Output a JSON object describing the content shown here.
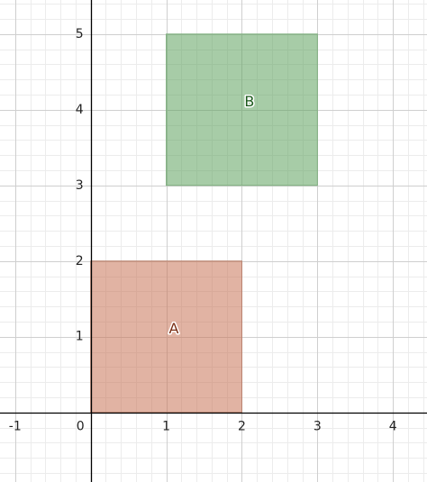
{
  "graph": {
    "x_range": [
      -1.2,
      4.45
    ],
    "y_range": [
      -0.92,
      5.45
    ],
    "x_ticks": [
      {
        "value": -1,
        "label": "-1"
      },
      {
        "value": 0,
        "label": "0"
      },
      {
        "value": 1,
        "label": "1"
      },
      {
        "value": 2,
        "label": "2"
      },
      {
        "value": 3,
        "label": "3"
      },
      {
        "value": 4,
        "label": "4"
      }
    ],
    "y_ticks": [
      {
        "value": 1,
        "label": "1"
      },
      {
        "value": 2,
        "label": "2"
      },
      {
        "value": 3,
        "label": "3"
      },
      {
        "value": 4,
        "label": "4"
      },
      {
        "value": 5,
        "label": "5"
      }
    ],
    "minor_step": 0.2,
    "colors": {
      "minor_grid": "#ececec",
      "major_grid": "#cfcfcf",
      "axis": "#000000"
    },
    "shapes": [
      {
        "id": "shape-a",
        "label": "A",
        "x0": 0,
        "y0": 0,
        "x1": 2,
        "y1": 2,
        "label_x": 1.1,
        "label_y": 1.1,
        "fill": "#c87457",
        "fill_opacity": 0.55,
        "stroke": "#b9826e",
        "label_color": "#7a2e14"
      },
      {
        "id": "shape-b",
        "label": "B",
        "x0": 1,
        "y0": 3,
        "x1": 3,
        "y1": 5,
        "label_x": 2.1,
        "label_y": 4.1,
        "fill": "#5ea35e",
        "fill_opacity": 0.55,
        "stroke": "#7eae7e",
        "label_color": "#1d5a1d"
      }
    ]
  }
}
